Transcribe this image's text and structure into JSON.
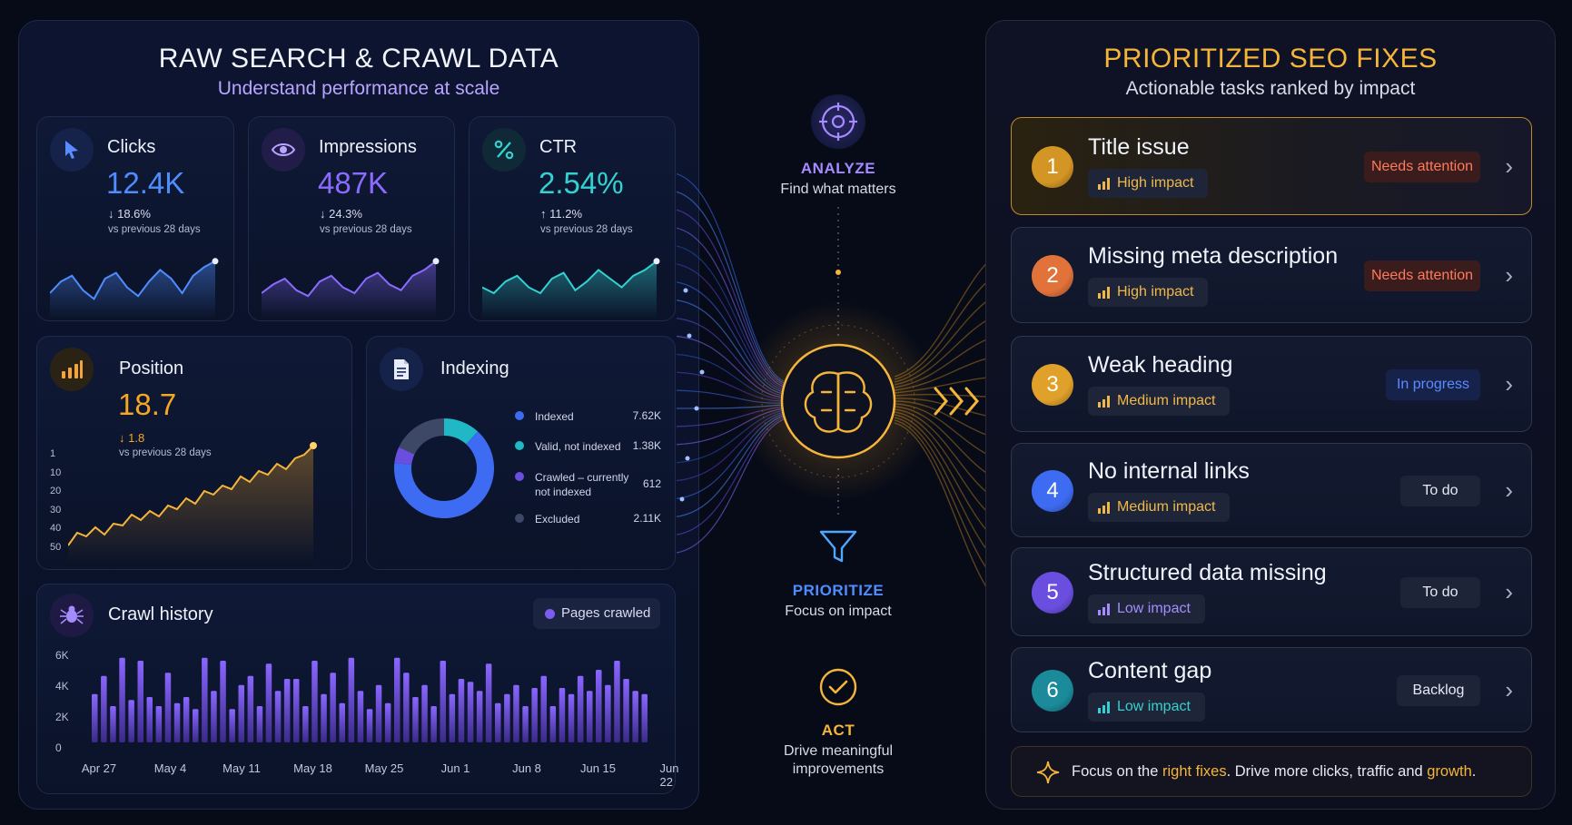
{
  "left_panel": {
    "title": "RAW SEARCH & CRAWL DATA",
    "subtitle": "Understand performance at scale"
  },
  "metrics": [
    {
      "label": "Clicks",
      "value": "12.4K",
      "delta": "↓ 18.6%",
      "note": "vs previous 28 days",
      "icon": "cursor-icon",
      "color": "#4f8dff"
    },
    {
      "label": "Impressions",
      "value": "487K",
      "delta": "↓ 24.3%",
      "note": "vs previous 28 days",
      "icon": "eye-icon",
      "color": "#8b6bff"
    },
    {
      "label": "CTR",
      "value": "2.54%",
      "delta": "↑ 11.2%",
      "note": "vs previous 28 days",
      "icon": "percent-icon",
      "color": "#33d1d1"
    }
  ],
  "position": {
    "label": "Position",
    "value": "18.7",
    "delta": "↓ 1.8",
    "note": "vs previous 28 days",
    "icon": "bar-chart-icon",
    "y_ticks": [
      "1",
      "10",
      "20",
      "30",
      "40",
      "50"
    ]
  },
  "indexing": {
    "label": "Indexing",
    "icon": "document-icon",
    "items": [
      {
        "name": "Indexed",
        "value": "7.62K",
        "count": 7620,
        "color": "#3d6cf2"
      },
      {
        "name": "Valid, not indexed",
        "value": "1.38K",
        "count": 1380,
        "color": "#1fb8c4"
      },
      {
        "name": "Crawled – currently not indexed",
        "value": "612",
        "count": 612,
        "color": "#6a4ee0"
      },
      {
        "name": "Excluded",
        "value": "2.11K",
        "count": 2110,
        "color": "#3d4766"
      }
    ]
  },
  "crawl": {
    "label": "Crawl history",
    "icon": "spider-icon",
    "legend": "Pages crawled",
    "y_ticks": [
      "6K",
      "4K",
      "2K",
      "0"
    ],
    "x_labels": [
      "Apr 27",
      "May 4",
      "May 11",
      "May 18",
      "May 25",
      "Jun 1",
      "Jun 8",
      "Jun 15",
      "Jun 22"
    ]
  },
  "flow": {
    "analyze": {
      "title": "ANALYZE",
      "sub": "Find what matters"
    },
    "prioritize": {
      "title": "PRIORITIZE",
      "sub": "Focus on impact"
    },
    "act": {
      "title": "ACT",
      "sub1": "Drive meaningful",
      "sub2": "improvements"
    }
  },
  "right_panel": {
    "title": "PRIORITIZED SEO FIXES",
    "subtitle": "Actionable tasks ranked by impact"
  },
  "fixes": [
    {
      "num": "1",
      "title": "Title issue",
      "impact": "High impact",
      "status": "Needs attention",
      "num_color": "#d39524",
      "impact_color": "#f0b84a",
      "status_color": "#ff7a5c",
      "status_bg": "#3a1c1c"
    },
    {
      "num": "2",
      "title": "Missing meta description",
      "impact": "High impact",
      "status": "Needs attention",
      "num_color": "#e0723a",
      "impact_color": "#f0b84a",
      "status_color": "#ff7a5c",
      "status_bg": "#3a1c1c"
    },
    {
      "num": "3",
      "title": "Weak heading",
      "impact": "Medium impact",
      "status": "In progress",
      "num_color": "#e0a12a",
      "impact_color": "#f0b84a",
      "status_color": "#5b8cff",
      "status_bg": "#16224a"
    },
    {
      "num": "4",
      "title": "No internal links",
      "impact": "Medium impact",
      "status": "To do",
      "num_color": "#3d6cf2",
      "impact_color": "#f0b84a",
      "status_color": "#e6e9f5",
      "status_bg": "#1e2438"
    },
    {
      "num": "5",
      "title": "Structured data missing",
      "impact": "Low impact",
      "status": "To do",
      "num_color": "#6a4ee0",
      "impact_color": "#a58bff",
      "status_color": "#e6e9f5",
      "status_bg": "#1e2438"
    },
    {
      "num": "6",
      "title": "Content gap",
      "impact": "Low impact",
      "status": "Backlog",
      "num_color": "#1b8a9a",
      "impact_color": "#33d1d1",
      "status_color": "#e6e9f5",
      "status_bg": "#1e2438"
    }
  ],
  "footer": {
    "t1": "Focus on the ",
    "h1": "right fixes",
    "t2": ". Drive more clicks, traffic and ",
    "h2": "growth",
    "t3": "."
  }
}
